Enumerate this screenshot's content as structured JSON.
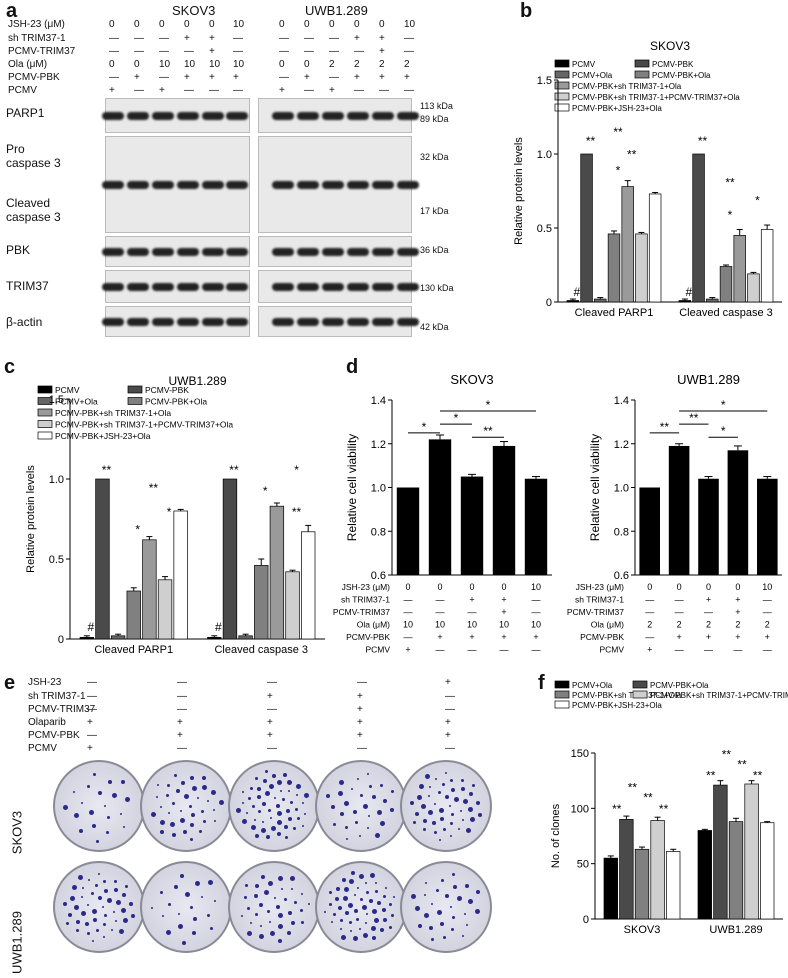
{
  "panels": {
    "a": "a",
    "b": "b",
    "c": "c",
    "d": "d",
    "e": "e",
    "f": "f"
  },
  "panel_a": {
    "cell_lines": [
      "SKOV3",
      "UWB1.289"
    ],
    "row_labels": [
      "JSH-23 (μM)",
      "sh TRIM37-1",
      "PCMV-TRIM37",
      "Ola (μM)",
      "PCMV-PBK",
      "PCMV"
    ],
    "skov3_rows": [
      [
        "0",
        "0",
        "0",
        "0",
        "0",
        "10"
      ],
      [
        "—",
        "—",
        "—",
        "+",
        "+",
        "—"
      ],
      [
        "—",
        "—",
        "—",
        "—",
        "+",
        "—"
      ],
      [
        "0",
        "0",
        "10",
        "10",
        "10",
        "10"
      ],
      [
        "—",
        "+",
        "—",
        "+",
        "+",
        "+"
      ],
      [
        "+",
        "—",
        "+",
        "—",
        "—",
        "—"
      ]
    ],
    "uwb_rows": [
      [
        "0",
        "0",
        "0",
        "0",
        "0",
        "10"
      ],
      [
        "—",
        "—",
        "—",
        "+",
        "+",
        "—"
      ],
      [
        "—",
        "—",
        "—",
        "—",
        "+",
        "—"
      ],
      [
        "0",
        "0",
        "2",
        "2",
        "2",
        "2"
      ],
      [
        "—",
        "+",
        "—",
        "+",
        "+",
        "+"
      ],
      [
        "+",
        "—",
        "+",
        "—",
        "—",
        "—"
      ]
    ],
    "blot_labels": [
      "PARP1",
      "Pro\ncaspase 3",
      "Cleaved\ncaspase 3",
      "PBK",
      "TRIM37",
      "β-actin"
    ],
    "kda": [
      "113 kDa",
      "89 kDa",
      "32 kDa",
      "17 kDa",
      "36 kDa",
      "130 kDa",
      "42 kDa"
    ]
  },
  "legend_b": [
    "PCMV",
    "PCMV-PBK",
    "PCMV+Ola",
    "PCMV-PBK+Ola",
    "PCMV-PBK+sh TRIM37-1+Ola",
    "PCMV-PBK+sh TRIM37-1+PCMV-TRIM37+Ola",
    "PCMV-PBK+JSH-23+Ola"
  ],
  "legend_f": [
    "PCMV+Ola",
    "PCMV-PBK+Ola",
    "PCMV-PBK+sh TRIM37-1+Ola",
    "PCMV-PBK+sh TRIM37-1+PCMV-TRIM37+Ola",
    "PCMV-PBK+JSH-23+Ola"
  ],
  "colors": {
    "s1": "#000000",
    "s2": "#4a4a4a",
    "s3": "#666666",
    "s4": "#808080",
    "s5": "#9a9a9a",
    "s6": "#cfcfcf",
    "s7": "#ffffff"
  },
  "panel_e": {
    "row_labels": [
      "JSH-23",
      "sh TRIM37-1",
      "PCMV-TRIM37",
      "Olaparib",
      "PCMV-PBK",
      "PCMV"
    ],
    "cols": [
      [
        "—",
        "—",
        "—",
        "+",
        "—",
        "+"
      ],
      [
        "—",
        "—",
        "—",
        "+",
        "+",
        "—"
      ],
      [
        "—",
        "+",
        "—",
        "+",
        "+",
        "—"
      ],
      [
        "—",
        "+",
        "+",
        "+",
        "+",
        "—"
      ],
      [
        "+",
        "—",
        "—",
        "+",
        "+",
        "—"
      ]
    ],
    "cell_lines": [
      "SKOV3",
      "UWB1.289"
    ]
  },
  "chart_data": [
    {
      "id": "b",
      "type": "bar",
      "title": "SKOV3",
      "xlabel": "",
      "ylabel": "Relative protein levels",
      "ylim": [
        0,
        1.5
      ],
      "yticks": [
        "0",
        "0.5",
        "1.0",
        "1.5"
      ],
      "categories": [
        "Cleaved PARP1",
        "Cleaved caspase 3"
      ],
      "series": [
        {
          "name": "PCMV",
          "values": [
            0.01,
            0.01
          ],
          "err": [
            0.01,
            0.01
          ]
        },
        {
          "name": "PCMV-PBK",
          "values": [
            1.0,
            1.0
          ],
          "err": [
            0,
            0
          ]
        },
        {
          "name": "PCMV+Ola",
          "values": [
            0.02,
            0.02
          ],
          "err": [
            0.01,
            0.01
          ]
        },
        {
          "name": "PCMV-PBK+Ola",
          "values": [
            0.46,
            0.24
          ],
          "err": [
            0.02,
            0.01
          ]
        },
        {
          "name": "PCMV-PBK+sh TRIM37-1+Ola",
          "values": [
            0.78,
            0.45
          ],
          "err": [
            0.04,
            0.04
          ]
        },
        {
          "name": "PCMV-PBK+sh TRIM37-1+PCMV-TRIM37+Ola",
          "values": [
            0.46,
            0.19
          ],
          "err": [
            0.01,
            0.01
          ]
        },
        {
          "name": "PCMV-PBK+JSH-23+Ola",
          "values": [
            0.73,
            0.49
          ],
          "err": [
            0.01,
            0.03
          ]
        }
      ],
      "annotations": [
        "#",
        "**",
        "*",
        "**",
        "**",
        "#",
        "**",
        "*",
        "*",
        "**"
      ]
    },
    {
      "id": "c",
      "type": "bar",
      "title": "UWB1.289",
      "xlabel": "",
      "ylabel": "Relative protein levels",
      "ylim": [
        0,
        1.5
      ],
      "yticks": [
        "0",
        "0.5",
        "1.0",
        "1.5"
      ],
      "categories": [
        "Cleaved PARP1",
        "Cleaved caspase 3"
      ],
      "series": [
        {
          "name": "PCMV",
          "values": [
            0.01,
            0.01
          ],
          "err": [
            0.01,
            0.01
          ]
        },
        {
          "name": "PCMV-PBK",
          "values": [
            1.0,
            1.0
          ],
          "err": [
            0,
            0
          ]
        },
        {
          "name": "PCMV+Ola",
          "values": [
            0.02,
            0.02
          ],
          "err": [
            0.01,
            0.01
          ]
        },
        {
          "name": "PCMV-PBK+Ola",
          "values": [
            0.3,
            0.46
          ],
          "err": [
            0.02,
            0.04
          ]
        },
        {
          "name": "PCMV-PBK+sh TRIM37-1+Ola",
          "values": [
            0.62,
            0.83
          ],
          "err": [
            0.02,
            0.02
          ]
        },
        {
          "name": "PCMV-PBK+sh TRIM37-1+PCMV-TRIM37+Ola",
          "values": [
            0.37,
            0.42
          ],
          "err": [
            0.02,
            0.01
          ]
        },
        {
          "name": "PCMV-PBK+JSH-23+Ola",
          "values": [
            0.8,
            0.67
          ],
          "err": [
            0.01,
            0.04
          ]
        }
      ],
      "annotations": [
        "#",
        "**",
        "*",
        "**",
        "*",
        "#",
        "**",
        "*",
        "**",
        "*"
      ]
    },
    {
      "id": "d1",
      "type": "bar",
      "title": "SKOV3",
      "xlabel": "",
      "ylabel": "Relative cell viability",
      "ylim": [
        0.6,
        1.4
      ],
      "yticks": [
        "0.6",
        "0.8",
        "1.0",
        "1.2",
        "1.4"
      ],
      "values": [
        1.0,
        1.22,
        1.05,
        1.19,
        1.04
      ],
      "err": [
        0,
        0.02,
        0.01,
        0.02,
        0.01
      ],
      "conditions": {
        "labels": [
          "JSH-23 (μM)",
          "sh TRIM37-1",
          "PCMV-TRIM37",
          "Ola (μM)",
          "PCMV-PBK",
          "PCMV"
        ],
        "cols": [
          [
            "0",
            "—",
            "—",
            "10",
            "—",
            "+"
          ],
          [
            "0",
            "—",
            "—",
            "10",
            "+",
            "—"
          ],
          [
            "0",
            "+",
            "—",
            "10",
            "+",
            "—"
          ],
          [
            "0",
            "+",
            "+",
            "10",
            "+",
            "—"
          ],
          [
            "10",
            "—",
            "—",
            "10",
            "+",
            "—"
          ]
        ]
      },
      "annotations": [
        "*",
        "*",
        "*",
        "**"
      ]
    },
    {
      "id": "d2",
      "type": "bar",
      "title": "UWB1.289",
      "xlabel": "",
      "ylabel": "Relative cell viability",
      "ylim": [
        0.6,
        1.4
      ],
      "yticks": [
        "0.6",
        "0.8",
        "1.0",
        "1.2",
        "1.4"
      ],
      "values": [
        1.0,
        1.19,
        1.04,
        1.17,
        1.04
      ],
      "err": [
        0,
        0.01,
        0.01,
        0.02,
        0.01
      ],
      "conditions": {
        "labels": [
          "JSH-23 (μM)",
          "sh TRIM37-1",
          "PCMV-TRIM37",
          "Ola (μM)",
          "PCMV-PBK",
          "PCMV"
        ],
        "cols": [
          [
            "0",
            "—",
            "—",
            "2",
            "—",
            "+"
          ],
          [
            "0",
            "—",
            "—",
            "2",
            "+",
            "—"
          ],
          [
            "0",
            "+",
            "—",
            "2",
            "+",
            "—"
          ],
          [
            "0",
            "+",
            "+",
            "2",
            "+",
            "—"
          ],
          [
            "10",
            "—",
            "—",
            "2",
            "+",
            "—"
          ]
        ]
      },
      "annotations": [
        "**",
        "**",
        "*",
        "*"
      ]
    },
    {
      "id": "f",
      "type": "bar",
      "title": "",
      "xlabel": "",
      "ylabel": "No. of clones",
      "ylim": [
        0,
        150
      ],
      "yticks": [
        "0",
        "50",
        "100",
        "150"
      ],
      "categories": [
        "SKOV3",
        "UWB1.289"
      ],
      "series": [
        {
          "name": "PCMV+Ola",
          "values": [
            55,
            80
          ],
          "err": [
            2,
            1
          ]
        },
        {
          "name": "PCMV-PBK+Ola",
          "values": [
            90,
            121
          ],
          "err": [
            3,
            4
          ]
        },
        {
          "name": "PCMV-PBK+sh TRIM37-1+Ola",
          "values": [
            63,
            88
          ],
          "err": [
            2,
            3
          ]
        },
        {
          "name": "PCMV-PBK+sh TRIM37-1+PCMV-TRIM37+Ola",
          "values": [
            89,
            122
          ],
          "err": [
            3,
            3
          ]
        },
        {
          "name": "PCMV-PBK+JSH-23+Ola",
          "values": [
            61,
            87
          ],
          "err": [
            2,
            1
          ]
        }
      ],
      "annotations": [
        "**",
        "**",
        "**",
        "**",
        "**",
        "**",
        "**",
        "**"
      ]
    }
  ]
}
